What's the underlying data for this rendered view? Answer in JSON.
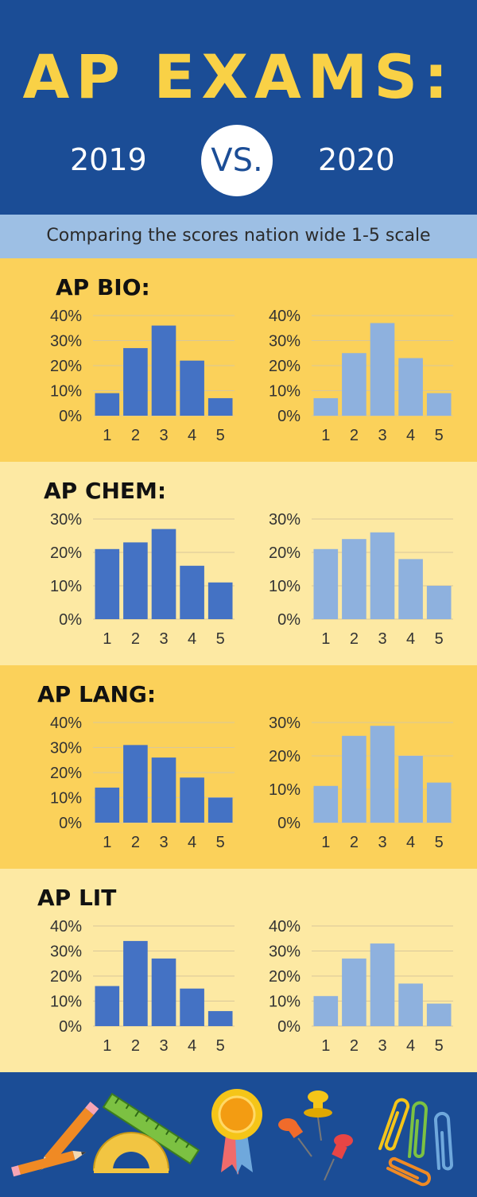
{
  "header": {
    "title": "AP EXAMS:",
    "year_left": "2019",
    "vs": "VS.",
    "year_right": "2020"
  },
  "subtitle": "Comparing the scores nation wide 1-5 scale",
  "colors": {
    "navy": "#1b4d96",
    "yellow_title": "#f9d146",
    "section_dark": "#fbd15a",
    "section_light": "#fde9a3",
    "band": "#9dbfe4",
    "bar_2019": "#4472c4",
    "bar_2020": "#8eb1de"
  },
  "sections": [
    {
      "title": "AP BIO:"
    },
    {
      "title": "AP CHEM:"
    },
    {
      "title": "AP LANG:"
    },
    {
      "title": "AP LIT"
    }
  ],
  "chart_data": [
    {
      "type": "bar",
      "subject": "AP BIO",
      "year": "2019",
      "categories": [
        "1",
        "2",
        "3",
        "4",
        "5"
      ],
      "values": [
        9,
        27,
        36,
        22,
        7
      ],
      "ylim": [
        0,
        40
      ],
      "yticks": [
        "0%",
        "10%",
        "20%",
        "30%",
        "40%"
      ],
      "grid": true
    },
    {
      "type": "bar",
      "subject": "AP BIO",
      "year": "2020",
      "categories": [
        "1",
        "2",
        "3",
        "4",
        "5"
      ],
      "values": [
        7,
        25,
        37,
        23,
        9
      ],
      "ylim": [
        0,
        40
      ],
      "yticks": [
        "0%",
        "10%",
        "20%",
        "30%",
        "40%"
      ],
      "grid": true
    },
    {
      "type": "bar",
      "subject": "AP CHEM",
      "year": "2019",
      "categories": [
        "1",
        "2",
        "3",
        "4",
        "5"
      ],
      "values": [
        21,
        23,
        27,
        16,
        11
      ],
      "ylim": [
        0,
        30
      ],
      "yticks": [
        "0%",
        "10%",
        "20%",
        "30%"
      ],
      "grid": true
    },
    {
      "type": "bar",
      "subject": "AP CHEM",
      "year": "2020",
      "categories": [
        "1",
        "2",
        "3",
        "4",
        "5"
      ],
      "values": [
        21,
        24,
        26,
        18,
        10
      ],
      "ylim": [
        0,
        30
      ],
      "yticks": [
        "0%",
        "10%",
        "20%",
        "30%"
      ],
      "grid": true
    },
    {
      "type": "bar",
      "subject": "AP LANG",
      "year": "2019",
      "categories": [
        "1",
        "2",
        "3",
        "4",
        "5"
      ],
      "values": [
        14,
        31,
        26,
        18,
        10
      ],
      "ylim": [
        0,
        40
      ],
      "yticks": [
        "0%",
        "10%",
        "20%",
        "30%",
        "40%"
      ],
      "grid": true
    },
    {
      "type": "bar",
      "subject": "AP LANG",
      "year": "2020",
      "categories": [
        "1",
        "2",
        "3",
        "4",
        "5"
      ],
      "values": [
        11,
        26,
        29,
        20,
        12
      ],
      "ylim": [
        0,
        30
      ],
      "yticks": [
        "0%",
        "10%",
        "20%",
        "30%"
      ],
      "grid": true
    },
    {
      "type": "bar",
      "subject": "AP LIT",
      "year": "2019",
      "categories": [
        "1",
        "2",
        "3",
        "4",
        "5"
      ],
      "values": [
        16,
        34,
        27,
        15,
        6
      ],
      "ylim": [
        0,
        40
      ],
      "yticks": [
        "0%",
        "10%",
        "20%",
        "30%",
        "40%"
      ],
      "grid": true
    },
    {
      "type": "bar",
      "subject": "AP LIT",
      "year": "2020",
      "categories": [
        "1",
        "2",
        "3",
        "4",
        "5"
      ],
      "values": [
        12,
        27,
        33,
        17,
        9
      ],
      "ylim": [
        0,
        40
      ],
      "yticks": [
        "0%",
        "10%",
        "20%",
        "30%",
        "40%"
      ],
      "grid": true
    }
  ],
  "footer": {
    "icons": [
      "pencil-icon",
      "pencil-icon",
      "ruler-icon",
      "protractor-icon",
      "award-ribbon-icon",
      "push-pin-icon",
      "paper-clip-icon"
    ]
  }
}
